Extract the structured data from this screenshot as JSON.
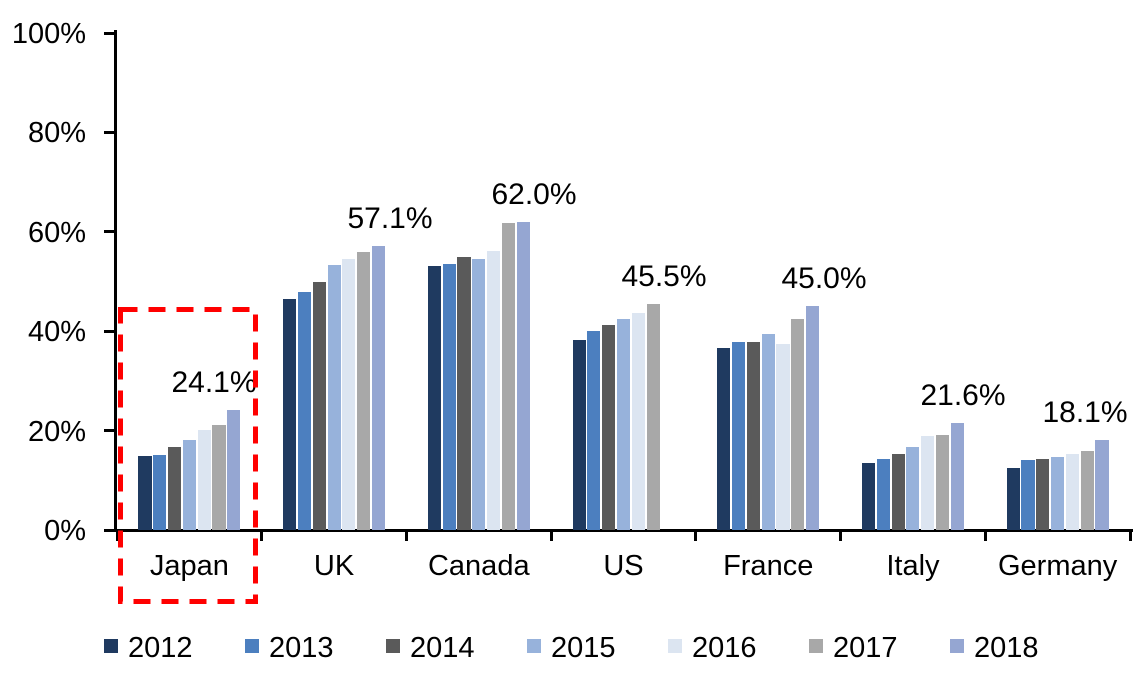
{
  "chart_data": {
    "type": "bar",
    "background": "#FFFFFF",
    "axis_color": "#000000",
    "text_color": "#000000",
    "categories": [
      "Japan",
      "UK",
      "Canada",
      "US",
      "France",
      "Italy",
      "Germany"
    ],
    "series": [
      {
        "name": "2012",
        "color": "#1F3A60",
        "values": [
          14.9,
          46.4,
          53.1,
          38.2,
          36.6,
          13.4,
          12.5
        ]
      },
      {
        "name": "2013",
        "color": "#4C7FBF",
        "values": [
          15.1,
          47.9,
          53.6,
          40.0,
          37.9,
          14.2,
          14.0
        ]
      },
      {
        "name": "2014",
        "color": "#5A5A5A",
        "values": [
          16.7,
          49.9,
          54.9,
          41.2,
          37.9,
          15.4,
          14.3
        ]
      },
      {
        "name": "2015",
        "color": "#97B2DB",
        "values": [
          18.2,
          53.3,
          54.6,
          42.4,
          39.5,
          16.8,
          14.7
        ]
      },
      {
        "name": "2016",
        "color": "#DCE5F1",
        "values": [
          20.1,
          54.6,
          56.1,
          43.6,
          37.4,
          18.9,
          15.3
        ]
      },
      {
        "name": "2017",
        "color": "#A8A8A8",
        "values": [
          21.2,
          55.9,
          61.7,
          45.5,
          42.4,
          19.2,
          15.9
        ]
      },
      {
        "name": "2018",
        "color": "#95A6D2",
        "values": [
          24.1,
          57.1,
          62.0,
          null,
          45.0,
          21.6,
          18.1
        ]
      }
    ],
    "data_labels": [
      "24.1%",
      "57.1%",
      "62.0%",
      "45.5%",
      "45.0%",
      "21.6%",
      "18.1%"
    ],
    "ylim": [
      0,
      100
    ],
    "yticks": [
      {
        "value": 0,
        "label": "0%"
      },
      {
        "value": 20,
        "label": "20%"
      },
      {
        "value": 40,
        "label": "40%"
      },
      {
        "value": 60,
        "label": "60%"
      },
      {
        "value": 80,
        "label": "80%"
      },
      {
        "value": 100,
        "label": "100%"
      }
    ],
    "grid": false,
    "legend_position": "bottom",
    "annotation": {
      "type": "dashed-box",
      "target": "Japan",
      "color": "#FF0000"
    }
  }
}
